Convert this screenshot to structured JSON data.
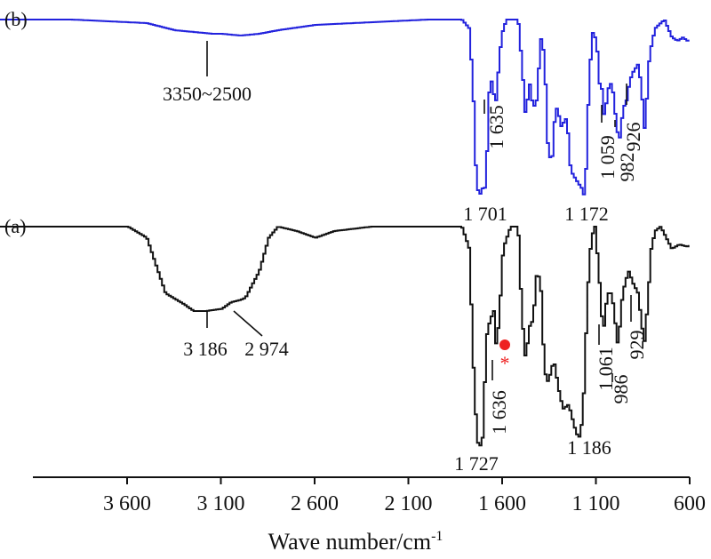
{
  "chart_data": {
    "type": "line",
    "xlabel": "Wave number/cm",
    "xlabel_sup": "-1",
    "xlim": [
      4300,
      600
    ],
    "x_reversed": true,
    "x_ticks": [
      {
        "value": 3600,
        "label": "3 600"
      },
      {
        "value": 3100,
        "label": "3 100"
      },
      {
        "value": 2600,
        "label": "2 600"
      },
      {
        "value": 2100,
        "label": "2 100"
      },
      {
        "value": 1600,
        "label": "1 600"
      },
      {
        "value": 1100,
        "label": "1 100"
      },
      {
        "value": 600,
        "label": "600"
      }
    ],
    "series": [
      {
        "name": "(b)",
        "color": "#2222dd",
        "points": [
          [
            4290,
            0.0
          ],
          [
            3900,
            0.0
          ],
          [
            3700,
            0.01
          ],
          [
            3500,
            0.02
          ],
          [
            3350,
            0.06
          ],
          [
            3150,
            0.08
          ],
          [
            3100,
            0.08
          ],
          [
            3000,
            0.09
          ],
          [
            2900,
            0.08
          ],
          [
            2800,
            0.06
          ],
          [
            2600,
            0.03
          ],
          [
            2400,
            0.02
          ],
          [
            2200,
            0.01
          ],
          [
            2000,
            0.0
          ],
          [
            1820,
            0.0
          ],
          [
            1780,
            0.05
          ],
          [
            1760,
            0.4
          ],
          [
            1745,
            0.85
          ],
          [
            1730,
            1.0
          ],
          [
            1710,
            0.95
          ],
          [
            1700,
            0.97
          ],
          [
            1690,
            0.85
          ],
          [
            1670,
            0.3
          ],
          [
            1650,
            0.42
          ],
          [
            1636,
            0.46
          ],
          [
            1620,
            0.2
          ],
          [
            1600,
            0.05
          ],
          [
            1580,
            0.0
          ],
          [
            1520,
            0.0
          ],
          [
            1500,
            0.25
          ],
          [
            1480,
            0.55
          ],
          [
            1460,
            0.35
          ],
          [
            1440,
            0.5
          ],
          [
            1420,
            0.45
          ],
          [
            1400,
            0.1
          ],
          [
            1380,
            0.2
          ],
          [
            1360,
            0.75
          ],
          [
            1340,
            0.8
          ],
          [
            1320,
            0.48
          ],
          [
            1300,
            0.55
          ],
          [
            1290,
            0.6
          ],
          [
            1260,
            0.55
          ],
          [
            1240,
            0.85
          ],
          [
            1200,
            0.92
          ],
          [
            1180,
            0.95
          ],
          [
            1172,
            1.0
          ],
          [
            1160,
            0.9
          ],
          [
            1140,
            0.3
          ],
          [
            1120,
            0.05
          ],
          [
            1100,
            0.15
          ],
          [
            1080,
            0.45
          ],
          [
            1070,
            0.35
          ],
          [
            1059,
            0.6
          ],
          [
            1045,
            0.4
          ],
          [
            1020,
            0.35
          ],
          [
            1000,
            0.55
          ],
          [
            982,
            0.7
          ],
          [
            960,
            0.5
          ],
          [
            940,
            0.45
          ],
          [
            926,
            0.35
          ],
          [
            910,
            0.3
          ],
          [
            880,
            0.25
          ],
          [
            860,
            0.4
          ],
          [
            850,
            0.65
          ],
          [
            840,
            0.55
          ],
          [
            820,
            0.2
          ],
          [
            790,
            0.05
          ],
          [
            760,
            0.02
          ],
          [
            740,
            0.0
          ],
          [
            720,
            0.05
          ],
          [
            700,
            0.1
          ],
          [
            670,
            0.12
          ],
          [
            640,
            0.1
          ],
          [
            620,
            0.12
          ],
          [
            600,
            0.11
          ]
        ]
      },
      {
        "name": "(a)",
        "color": "#111111",
        "points": [
          [
            4290,
            0.0
          ],
          [
            3900,
            0.0
          ],
          [
            3700,
            0.0
          ],
          [
            3600,
            0.0
          ],
          [
            3500,
            0.05
          ],
          [
            3400,
            0.3
          ],
          [
            3300,
            0.35
          ],
          [
            3250,
            0.38
          ],
          [
            3186,
            0.38
          ],
          [
            3100,
            0.37
          ],
          [
            3050,
            0.34
          ],
          [
            3000,
            0.33
          ],
          [
            2974,
            0.32
          ],
          [
            2900,
            0.2
          ],
          [
            2850,
            0.05
          ],
          [
            2800,
            0.0
          ],
          [
            2700,
            0.02
          ],
          [
            2600,
            0.05
          ],
          [
            2500,
            0.02
          ],
          [
            2300,
            0.0
          ],
          [
            2000,
            0.0
          ],
          [
            1820,
            0.0
          ],
          [
            1780,
            0.1
          ],
          [
            1760,
            0.6
          ],
          [
            1740,
            0.95
          ],
          [
            1727,
            1.0
          ],
          [
            1710,
            0.95
          ],
          [
            1700,
            0.75
          ],
          [
            1690,
            0.5
          ],
          [
            1670,
            0.42
          ],
          [
            1650,
            0.38
          ],
          [
            1636,
            0.55
          ],
          [
            1620,
            0.4
          ],
          [
            1600,
            0.1
          ],
          [
            1560,
            0.0
          ],
          [
            1520,
            0.0
          ],
          [
            1500,
            0.4
          ],
          [
            1480,
            0.6
          ],
          [
            1460,
            0.45
          ],
          [
            1440,
            0.42
          ],
          [
            1420,
            0.2
          ],
          [
            1400,
            0.25
          ],
          [
            1380,
            0.65
          ],
          [
            1360,
            0.7
          ],
          [
            1330,
            0.6
          ],
          [
            1300,
            0.75
          ],
          [
            1280,
            0.82
          ],
          [
            1250,
            0.8
          ],
          [
            1220,
            0.9
          ],
          [
            1200,
            0.95
          ],
          [
            1186,
            0.94
          ],
          [
            1170,
            0.75
          ],
          [
            1150,
            0.3
          ],
          [
            1130,
            0.05
          ],
          [
            1110,
            0.0
          ],
          [
            1090,
            0.2
          ],
          [
            1075,
            0.4
          ],
          [
            1061,
            0.45
          ],
          [
            1045,
            0.3
          ],
          [
            1020,
            0.3
          ],
          [
            1000,
            0.45
          ],
          [
            986,
            0.55
          ],
          [
            970,
            0.35
          ],
          [
            950,
            0.25
          ],
          [
            929,
            0.2
          ],
          [
            910,
            0.25
          ],
          [
            880,
            0.3
          ],
          [
            860,
            0.45
          ],
          [
            845,
            0.52
          ],
          [
            830,
            0.35
          ],
          [
            810,
            0.1
          ],
          [
            790,
            0.02
          ],
          [
            760,
            0.0
          ],
          [
            730,
            0.05
          ],
          [
            700,
            0.1
          ],
          [
            660,
            0.08
          ],
          [
            620,
            0.09
          ],
          [
            600,
            0.08
          ]
        ]
      }
    ],
    "annotations": [
      {
        "series": 0,
        "text": "3350~2500",
        "orient": "h"
      },
      {
        "series": 0,
        "text": "1 701",
        "orient": "h"
      },
      {
        "series": 0,
        "text": "1 172",
        "orient": "h"
      },
      {
        "series": 0,
        "text": "1 635",
        "orient": "v"
      },
      {
        "series": 0,
        "text": "1 059",
        "orient": "v"
      },
      {
        "series": 0,
        "text": "982",
        "orient": "v"
      },
      {
        "series": 0,
        "text": "926",
        "orient": "v"
      },
      {
        "series": 1,
        "text": "3 186",
        "orient": "h"
      },
      {
        "series": 1,
        "text": "2 974",
        "orient": "h"
      },
      {
        "series": 1,
        "text": "1 727",
        "orient": "h"
      },
      {
        "series": 1,
        "text": "1 186",
        "orient": "h"
      },
      {
        "series": 1,
        "text": "1 636",
        "orient": "v"
      },
      {
        "series": 1,
        "text": "1 061",
        "orient": "v"
      },
      {
        "series": 1,
        "text": "986",
        "orient": "v"
      },
      {
        "series": 1,
        "text": "929",
        "orient": "v"
      }
    ],
    "markers": [
      {
        "series": 1,
        "shape": "dot",
        "color": "#ee2222"
      },
      {
        "series": 1,
        "shape": "asterisk",
        "text": "*",
        "color": "#ee2222"
      }
    ]
  }
}
